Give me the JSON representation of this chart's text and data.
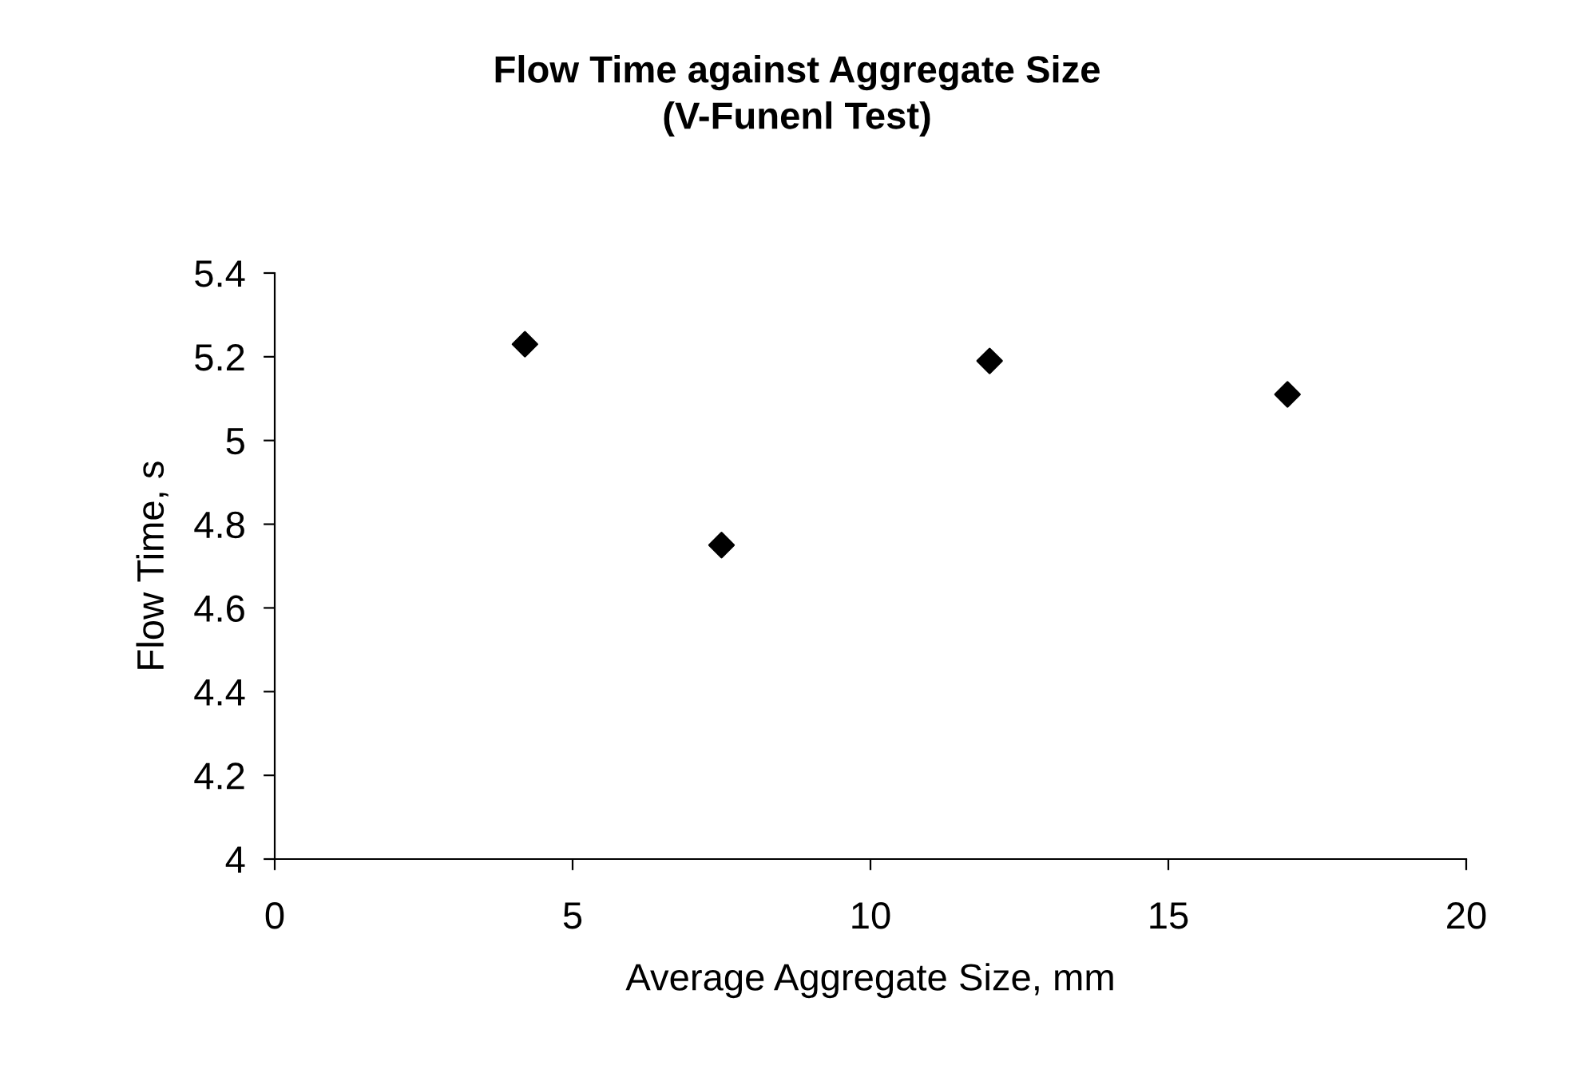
{
  "chart_data": {
    "type": "scatter",
    "title": "Flow Time against Aggregate Size\n(V-Funenl Test)",
    "xlabel": "Average Aggregate Size, mm",
    "ylabel": "Flow Time, s",
    "x": [
      4.2,
      7.5,
      12.0,
      17.0
    ],
    "series": [
      {
        "color": "#000000",
        "values": [
          5.23,
          4.75,
          5.19,
          5.11
        ]
      }
    ],
    "marker": "diamond",
    "xlim": [
      0,
      20
    ],
    "xticks": [
      0,
      5,
      10,
      15,
      20
    ],
    "ylim": [
      4,
      5.4
    ],
    "yticks": [
      4,
      4.2,
      4.4,
      4.6,
      4.8,
      5,
      5.2,
      5.4
    ],
    "grid": false,
    "legend": false
  }
}
